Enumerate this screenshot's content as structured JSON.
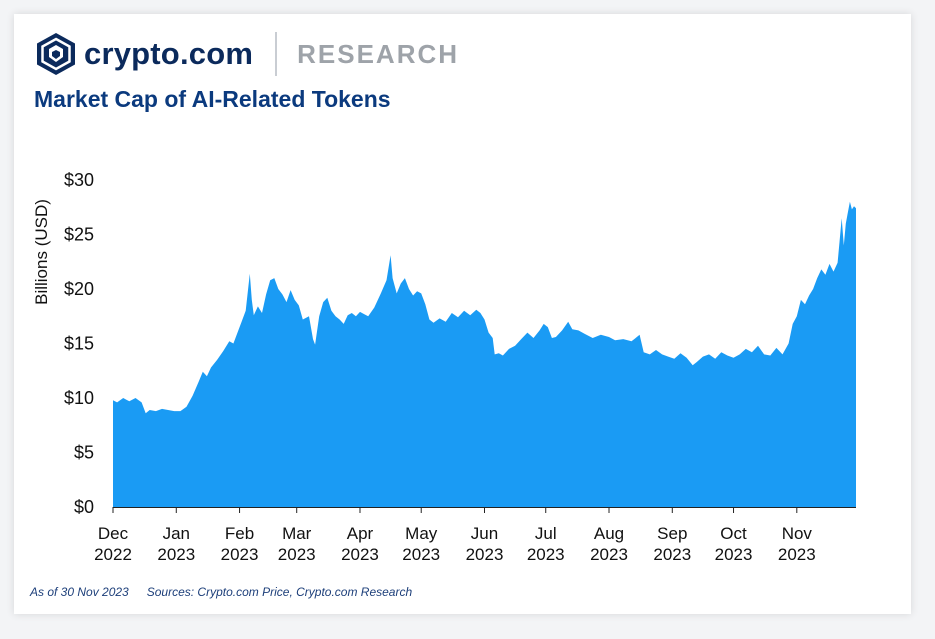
{
  "header": {
    "logo_icon": "crypto-com-lion-logo",
    "brand_name": "crypto.com",
    "research_label": "RESEARCH",
    "brand_color": "#0b2a5c"
  },
  "chart_data": {
    "type": "area",
    "title": "Market Cap of AI-Related Tokens",
    "ylabel": "Billions (USD)",
    "xlabel": "",
    "ylim": [
      0,
      30
    ],
    "yticks": [
      "$0",
      "$5",
      "$10",
      "$15",
      "$20",
      "$25",
      "$30"
    ],
    "xticks": [
      {
        "line1": "Dec",
        "line2": "2022"
      },
      {
        "line1": "Jan",
        "line2": "2023"
      },
      {
        "line1": "Feb",
        "line2": "2023"
      },
      {
        "line1": "Mar",
        "line2": "2023"
      },
      {
        "line1": "Apr",
        "line2": "2023"
      },
      {
        "line1": "May",
        "line2": "2023"
      },
      {
        "line1": "Jun",
        "line2": "2023"
      },
      {
        "line1": "Jul",
        "line2": "2023"
      },
      {
        "line1": "Aug",
        "line2": "2023"
      },
      {
        "line1": "Sep",
        "line2": "2023"
      },
      {
        "line1": "Oct",
        "line2": "2023"
      },
      {
        "line1": "Nov",
        "line2": "2023"
      }
    ],
    "fill_color": "#1a9bf4",
    "grid": false,
    "series": [
      {
        "values": [
          [
            "2022-12-01",
            9.8
          ],
          [
            "2022-12-03",
            9.6
          ],
          [
            "2022-12-06",
            10.0
          ],
          [
            "2022-12-09",
            9.7
          ],
          [
            "2022-12-12",
            10.0
          ],
          [
            "2022-12-15",
            9.6
          ],
          [
            "2022-12-17",
            8.6
          ],
          [
            "2022-12-19",
            8.9
          ],
          [
            "2022-12-22",
            8.8
          ],
          [
            "2022-12-25",
            9.0
          ],
          [
            "2022-12-28",
            8.9
          ],
          [
            "2022-12-31",
            8.8
          ],
          [
            "2023-01-03",
            8.8
          ],
          [
            "2023-01-06",
            9.2
          ],
          [
            "2023-01-09",
            10.2
          ],
          [
            "2023-01-12",
            11.5
          ],
          [
            "2023-01-14",
            12.4
          ],
          [
            "2023-01-16",
            12.0
          ],
          [
            "2023-01-18",
            12.8
          ],
          [
            "2023-01-21",
            13.5
          ],
          [
            "2023-01-24",
            14.3
          ],
          [
            "2023-01-27",
            15.2
          ],
          [
            "2023-01-29",
            15.0
          ],
          [
            "2023-01-31",
            16.0
          ],
          [
            "2023-02-02",
            17.0
          ],
          [
            "2023-02-04",
            18.0
          ],
          [
            "2023-02-06",
            21.4
          ],
          [
            "2023-02-07",
            19.0
          ],
          [
            "2023-02-08",
            17.6
          ],
          [
            "2023-02-10",
            18.4
          ],
          [
            "2023-02-12",
            17.8
          ],
          [
            "2023-02-14",
            19.5
          ],
          [
            "2023-02-16",
            20.8
          ],
          [
            "2023-02-18",
            21.0
          ],
          [
            "2023-02-20",
            20.0
          ],
          [
            "2023-02-22",
            19.5
          ],
          [
            "2023-02-24",
            18.8
          ],
          [
            "2023-02-26",
            19.9
          ],
          [
            "2023-02-28",
            19.0
          ],
          [
            "2023-03-02",
            18.5
          ],
          [
            "2023-03-04",
            17.2
          ],
          [
            "2023-03-07",
            17.5
          ],
          [
            "2023-03-09",
            15.4
          ],
          [
            "2023-03-10",
            14.9
          ],
          [
            "2023-03-12",
            17.5
          ],
          [
            "2023-03-14",
            18.8
          ],
          [
            "2023-03-16",
            19.2
          ],
          [
            "2023-03-18",
            18.0
          ],
          [
            "2023-03-20",
            17.5
          ],
          [
            "2023-03-22",
            17.2
          ],
          [
            "2023-03-24",
            16.8
          ],
          [
            "2023-03-26",
            17.6
          ],
          [
            "2023-03-28",
            17.8
          ],
          [
            "2023-03-30",
            17.5
          ],
          [
            "2023-04-01",
            17.9
          ],
          [
            "2023-04-03",
            17.7
          ],
          [
            "2023-04-05",
            17.5
          ],
          [
            "2023-04-08",
            18.3
          ],
          [
            "2023-04-11",
            19.5
          ],
          [
            "2023-04-14",
            20.8
          ],
          [
            "2023-04-16",
            23.1
          ],
          [
            "2023-04-17",
            21.0
          ],
          [
            "2023-04-19",
            19.6
          ],
          [
            "2023-04-21",
            20.5
          ],
          [
            "2023-04-23",
            21.0
          ],
          [
            "2023-04-25",
            20.0
          ],
          [
            "2023-04-27",
            19.4
          ],
          [
            "2023-04-29",
            19.8
          ],
          [
            "2023-05-01",
            19.6
          ],
          [
            "2023-05-03",
            18.6
          ],
          [
            "2023-05-05",
            17.2
          ],
          [
            "2023-05-07",
            16.9
          ],
          [
            "2023-05-10",
            17.3
          ],
          [
            "2023-05-13",
            17.0
          ],
          [
            "2023-05-16",
            17.8
          ],
          [
            "2023-05-19",
            17.4
          ],
          [
            "2023-05-22",
            18.0
          ],
          [
            "2023-05-25",
            17.6
          ],
          [
            "2023-05-28",
            18.1
          ],
          [
            "2023-05-30",
            17.8
          ],
          [
            "2023-06-01",
            17.2
          ],
          [
            "2023-06-03",
            16.0
          ],
          [
            "2023-06-05",
            15.5
          ],
          [
            "2023-06-06",
            14.0
          ],
          [
            "2023-06-08",
            14.1
          ],
          [
            "2023-06-10",
            13.9
          ],
          [
            "2023-06-13",
            14.5
          ],
          [
            "2023-06-16",
            14.8
          ],
          [
            "2023-06-19",
            15.4
          ],
          [
            "2023-06-22",
            16.0
          ],
          [
            "2023-06-25",
            15.5
          ],
          [
            "2023-06-28",
            16.2
          ],
          [
            "2023-06-30",
            16.8
          ],
          [
            "2023-07-02",
            16.5
          ],
          [
            "2023-07-04",
            15.5
          ],
          [
            "2023-07-06",
            15.6
          ],
          [
            "2023-07-09",
            16.2
          ],
          [
            "2023-07-12",
            17.0
          ],
          [
            "2023-07-14",
            16.3
          ],
          [
            "2023-07-17",
            16.2
          ],
          [
            "2023-07-20",
            15.9
          ],
          [
            "2023-07-24",
            15.5
          ],
          [
            "2023-07-28",
            15.8
          ],
          [
            "2023-08-01",
            15.6
          ],
          [
            "2023-08-04",
            15.3
          ],
          [
            "2023-08-08",
            15.4
          ],
          [
            "2023-08-12",
            15.2
          ],
          [
            "2023-08-16",
            15.8
          ],
          [
            "2023-08-18",
            14.2
          ],
          [
            "2023-08-21",
            14.0
          ],
          [
            "2023-08-24",
            14.4
          ],
          [
            "2023-08-27",
            14.0
          ],
          [
            "2023-08-30",
            13.8
          ],
          [
            "2023-09-02",
            13.6
          ],
          [
            "2023-09-05",
            14.1
          ],
          [
            "2023-09-08",
            13.7
          ],
          [
            "2023-09-11",
            13.0
          ],
          [
            "2023-09-13",
            13.3
          ],
          [
            "2023-09-16",
            13.8
          ],
          [
            "2023-09-19",
            14.0
          ],
          [
            "2023-09-22",
            13.6
          ],
          [
            "2023-09-25",
            14.2
          ],
          [
            "2023-09-28",
            13.9
          ],
          [
            "2023-10-01",
            13.7
          ],
          [
            "2023-10-04",
            14.0
          ],
          [
            "2023-10-07",
            14.5
          ],
          [
            "2023-10-10",
            14.2
          ],
          [
            "2023-10-13",
            14.8
          ],
          [
            "2023-10-16",
            14.0
          ],
          [
            "2023-10-19",
            13.9
          ],
          [
            "2023-10-22",
            14.6
          ],
          [
            "2023-10-25",
            14.0
          ],
          [
            "2023-10-28",
            15.0
          ],
          [
            "2023-10-30",
            16.8
          ],
          [
            "2023-11-01",
            17.5
          ],
          [
            "2023-11-03",
            19.0
          ],
          [
            "2023-11-05",
            18.6
          ],
          [
            "2023-11-07",
            19.4
          ],
          [
            "2023-11-09",
            20.0
          ],
          [
            "2023-11-11",
            21.0
          ],
          [
            "2023-11-13",
            21.8
          ],
          [
            "2023-11-15",
            21.3
          ],
          [
            "2023-11-17",
            22.3
          ],
          [
            "2023-11-19",
            21.6
          ],
          [
            "2023-11-21",
            22.4
          ],
          [
            "2023-11-22",
            24.5
          ],
          [
            "2023-11-23",
            26.5
          ],
          [
            "2023-11-24",
            24.0
          ],
          [
            "2023-11-25",
            26.0
          ],
          [
            "2023-11-26",
            27.0
          ],
          [
            "2023-11-27",
            28.0
          ],
          [
            "2023-11-28",
            27.3
          ],
          [
            "2023-11-29",
            27.6
          ],
          [
            "2023-11-30",
            27.4
          ]
        ]
      }
    ]
  },
  "footer": {
    "as_of": "As of 30 Nov 2023",
    "sources": "Sources: Crypto.com Price, Crypto.com Research"
  }
}
